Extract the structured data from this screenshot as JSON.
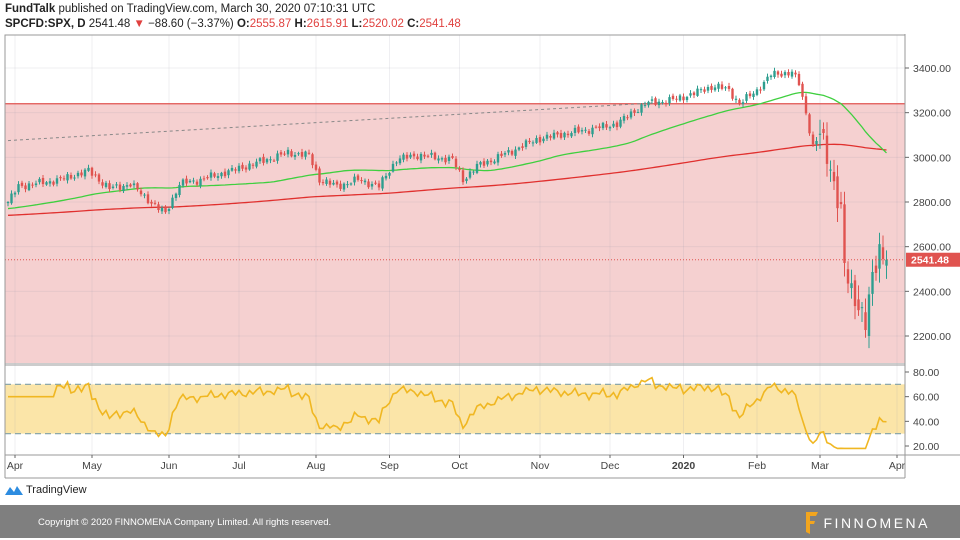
{
  "header": {
    "publisher": "FundTalk",
    "published_text": "published on TradingView.com, March 30, 2020 07:10:31 UTC",
    "symbol": "SPCFD:SPX, D",
    "last": "2541.48",
    "change": "−88.60 (−3.37%)",
    "o_label": "O:",
    "o": "2555.87",
    "h_label": "H:",
    "h": "2615.91",
    "l_label": "L:",
    "l": "2520.02",
    "c_label": "C:",
    "c": "2541.48"
  },
  "chart_data": {
    "type": "candlestick",
    "price_axis": {
      "ticks": [
        "3400.00",
        "3200.00",
        "3000.00",
        "2800.00",
        "2600.00",
        "2400.00",
        "2200.00"
      ],
      "values": [
        3400,
        3200,
        3000,
        2800,
        2600,
        2400,
        2200
      ],
      "range": [
        2100,
        3550
      ]
    },
    "rsi_axis": {
      "ticks": [
        "80.00",
        "60.00",
        "40.00",
        "20.00"
      ],
      "values": [
        80,
        60,
        40,
        20
      ],
      "range": [
        15,
        85
      ],
      "bands": [
        70,
        30
      ]
    },
    "x_ticks": [
      {
        "label": "Apr",
        "day": 2
      },
      {
        "label": "May",
        "day": 24
      },
      {
        "label": "Jun",
        "day": 46
      },
      {
        "label": "Jul",
        "day": 66
      },
      {
        "label": "Aug",
        "day": 88
      },
      {
        "label": "Sep",
        "day": 109
      },
      {
        "label": "Oct",
        "day": 129
      },
      {
        "label": "Nov",
        "day": 152
      },
      {
        "label": "Dec",
        "day": 172
      },
      {
        "label": "2020",
        "day": 193
      },
      {
        "label": "Feb",
        "day": 214
      },
      {
        "label": "Mar",
        "day": 232
      },
      {
        "label": "Apr",
        "day": 254
      }
    ],
    "days": 252,
    "close_keypoints": [
      [
        0,
        2800
      ],
      [
        3,
        2870
      ],
      [
        15,
        2900
      ],
      [
        23,
        2940
      ],
      [
        29,
        2860
      ],
      [
        35,
        2880
      ],
      [
        43,
        2770
      ],
      [
        45,
        2750
      ],
      [
        49,
        2880
      ],
      [
        55,
        2900
      ],
      [
        66,
        2950
      ],
      [
        80,
        3020
      ],
      [
        86,
        3010
      ],
      [
        89,
        2900
      ],
      [
        94,
        2870
      ],
      [
        100,
        2900
      ],
      [
        106,
        2870
      ],
      [
        111,
        2990
      ],
      [
        117,
        3010
      ],
      [
        127,
        2990
      ],
      [
        130,
        2900
      ],
      [
        134,
        2960
      ],
      [
        140,
        3000
      ],
      [
        151,
        3080
      ],
      [
        157,
        3100
      ],
      [
        168,
        3130
      ],
      [
        174,
        3150
      ],
      [
        182,
        3240
      ],
      [
        191,
        3260
      ],
      [
        202,
        3320
      ],
      [
        206,
        3300
      ],
      [
        209,
        3240
      ],
      [
        214,
        3300
      ],
      [
        218,
        3370
      ],
      [
        224,
        3380
      ],
      [
        226,
        3330
      ],
      [
        228,
        3200
      ],
      [
        230,
        3050
      ],
      [
        232,
        3100
      ],
      [
        235,
        2960
      ],
      [
        238,
        2750
      ],
      [
        239,
        2500
      ],
      [
        241,
        2400
      ],
      [
        243,
        2350
      ],
      [
        245,
        2250
      ],
      [
        247,
        2450
      ],
      [
        249,
        2600
      ],
      [
        251,
        2541.48
      ]
    ],
    "resistance_level": 3240,
    "trendline": [
      [
        0,
        3075
      ],
      [
        186,
        3245
      ]
    ],
    "last_price_label": "2541.48",
    "series": [
      {
        "name": "Price",
        "type": "candles"
      },
      {
        "name": "MA 50",
        "color": "#3fcf3f"
      },
      {
        "name": "MA 200",
        "color": "#e0302e"
      },
      {
        "name": "RSI",
        "color": "#f0b722"
      }
    ],
    "colors": {
      "up": "#2e9e8f",
      "down": "#e0534f",
      "zone": "#f5d0d0",
      "rsi_zone": "#fbe5a8"
    }
  },
  "branding": {
    "tradingview": "TradingView",
    "copyright": "Copyright © 2020 FINNOMENA Company Limited. All rights reserved.",
    "finnomena": "FINNOMENA"
  }
}
